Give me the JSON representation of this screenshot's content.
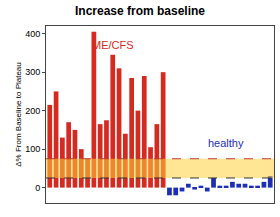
{
  "chart_data": {
    "type": "bar",
    "title": "Increase from baseline",
    "y_label": "Δ% From Baseline to Plateau",
    "categories": [
      null,
      null,
      null,
      null,
      null,
      null,
      null,
      null,
      null,
      null,
      null,
      null,
      null,
      null,
      null,
      null,
      null,
      null,
      null,
      null,
      null,
      null,
      null,
      null,
      null,
      null,
      null,
      null,
      null,
      null,
      null,
      null,
      null,
      null,
      null,
      null
    ],
    "values": [
      215,
      250,
      130,
      170,
      150,
      100,
      75,
      405,
      165,
      175,
      345,
      310,
      140,
      285,
      200,
      290,
      105,
      165,
      300,
      -20,
      -20,
      -10,
      10,
      -5,
      5,
      -10,
      25,
      5,
      5,
      15,
      10,
      10,
      5,
      5,
      15,
      30
    ],
    "colors": [
      "#d42a1f",
      "#d42a1f",
      "#d42a1f",
      "#d42a1f",
      "#d42a1f",
      "#d42a1f",
      "#d42a1f",
      "#d42a1f",
      "#d42a1f",
      "#d42a1f",
      "#d42a1f",
      "#d42a1f",
      "#d42a1f",
      "#d42a1f",
      "#d42a1f",
      "#d42a1f",
      "#d42a1f",
      "#d42a1f",
      "#d42a1f",
      "#1c2fb5",
      "#1c2fb5",
      "#1c2fb5",
      "#1c2fb5",
      "#1c2fb5",
      "#1c2fb5",
      "#1c2fb5",
      "#1c2fb5",
      "#1c2fb5",
      "#1c2fb5",
      "#1c2fb5",
      "#1c2fb5",
      "#1c2fb5",
      "#1c2fb5",
      "#1c2fb5",
      "#1c2fb5",
      "#1c2fb5"
    ],
    "annotations": [
      {
        "text": "ME/CFS",
        "color": "#d42a1f",
        "x": 10,
        "y": 370
      },
      {
        "text": "healthy",
        "color": "#1c2fb5",
        "x": 28,
        "y": 115
      }
    ],
    "band": [
      25,
      75
    ],
    "ylim": [
      -40,
      420
    ],
    "yticks": [
      0,
      100,
      200,
      300,
      400
    ],
    "grid": false,
    "tick_labels": "y"
  }
}
